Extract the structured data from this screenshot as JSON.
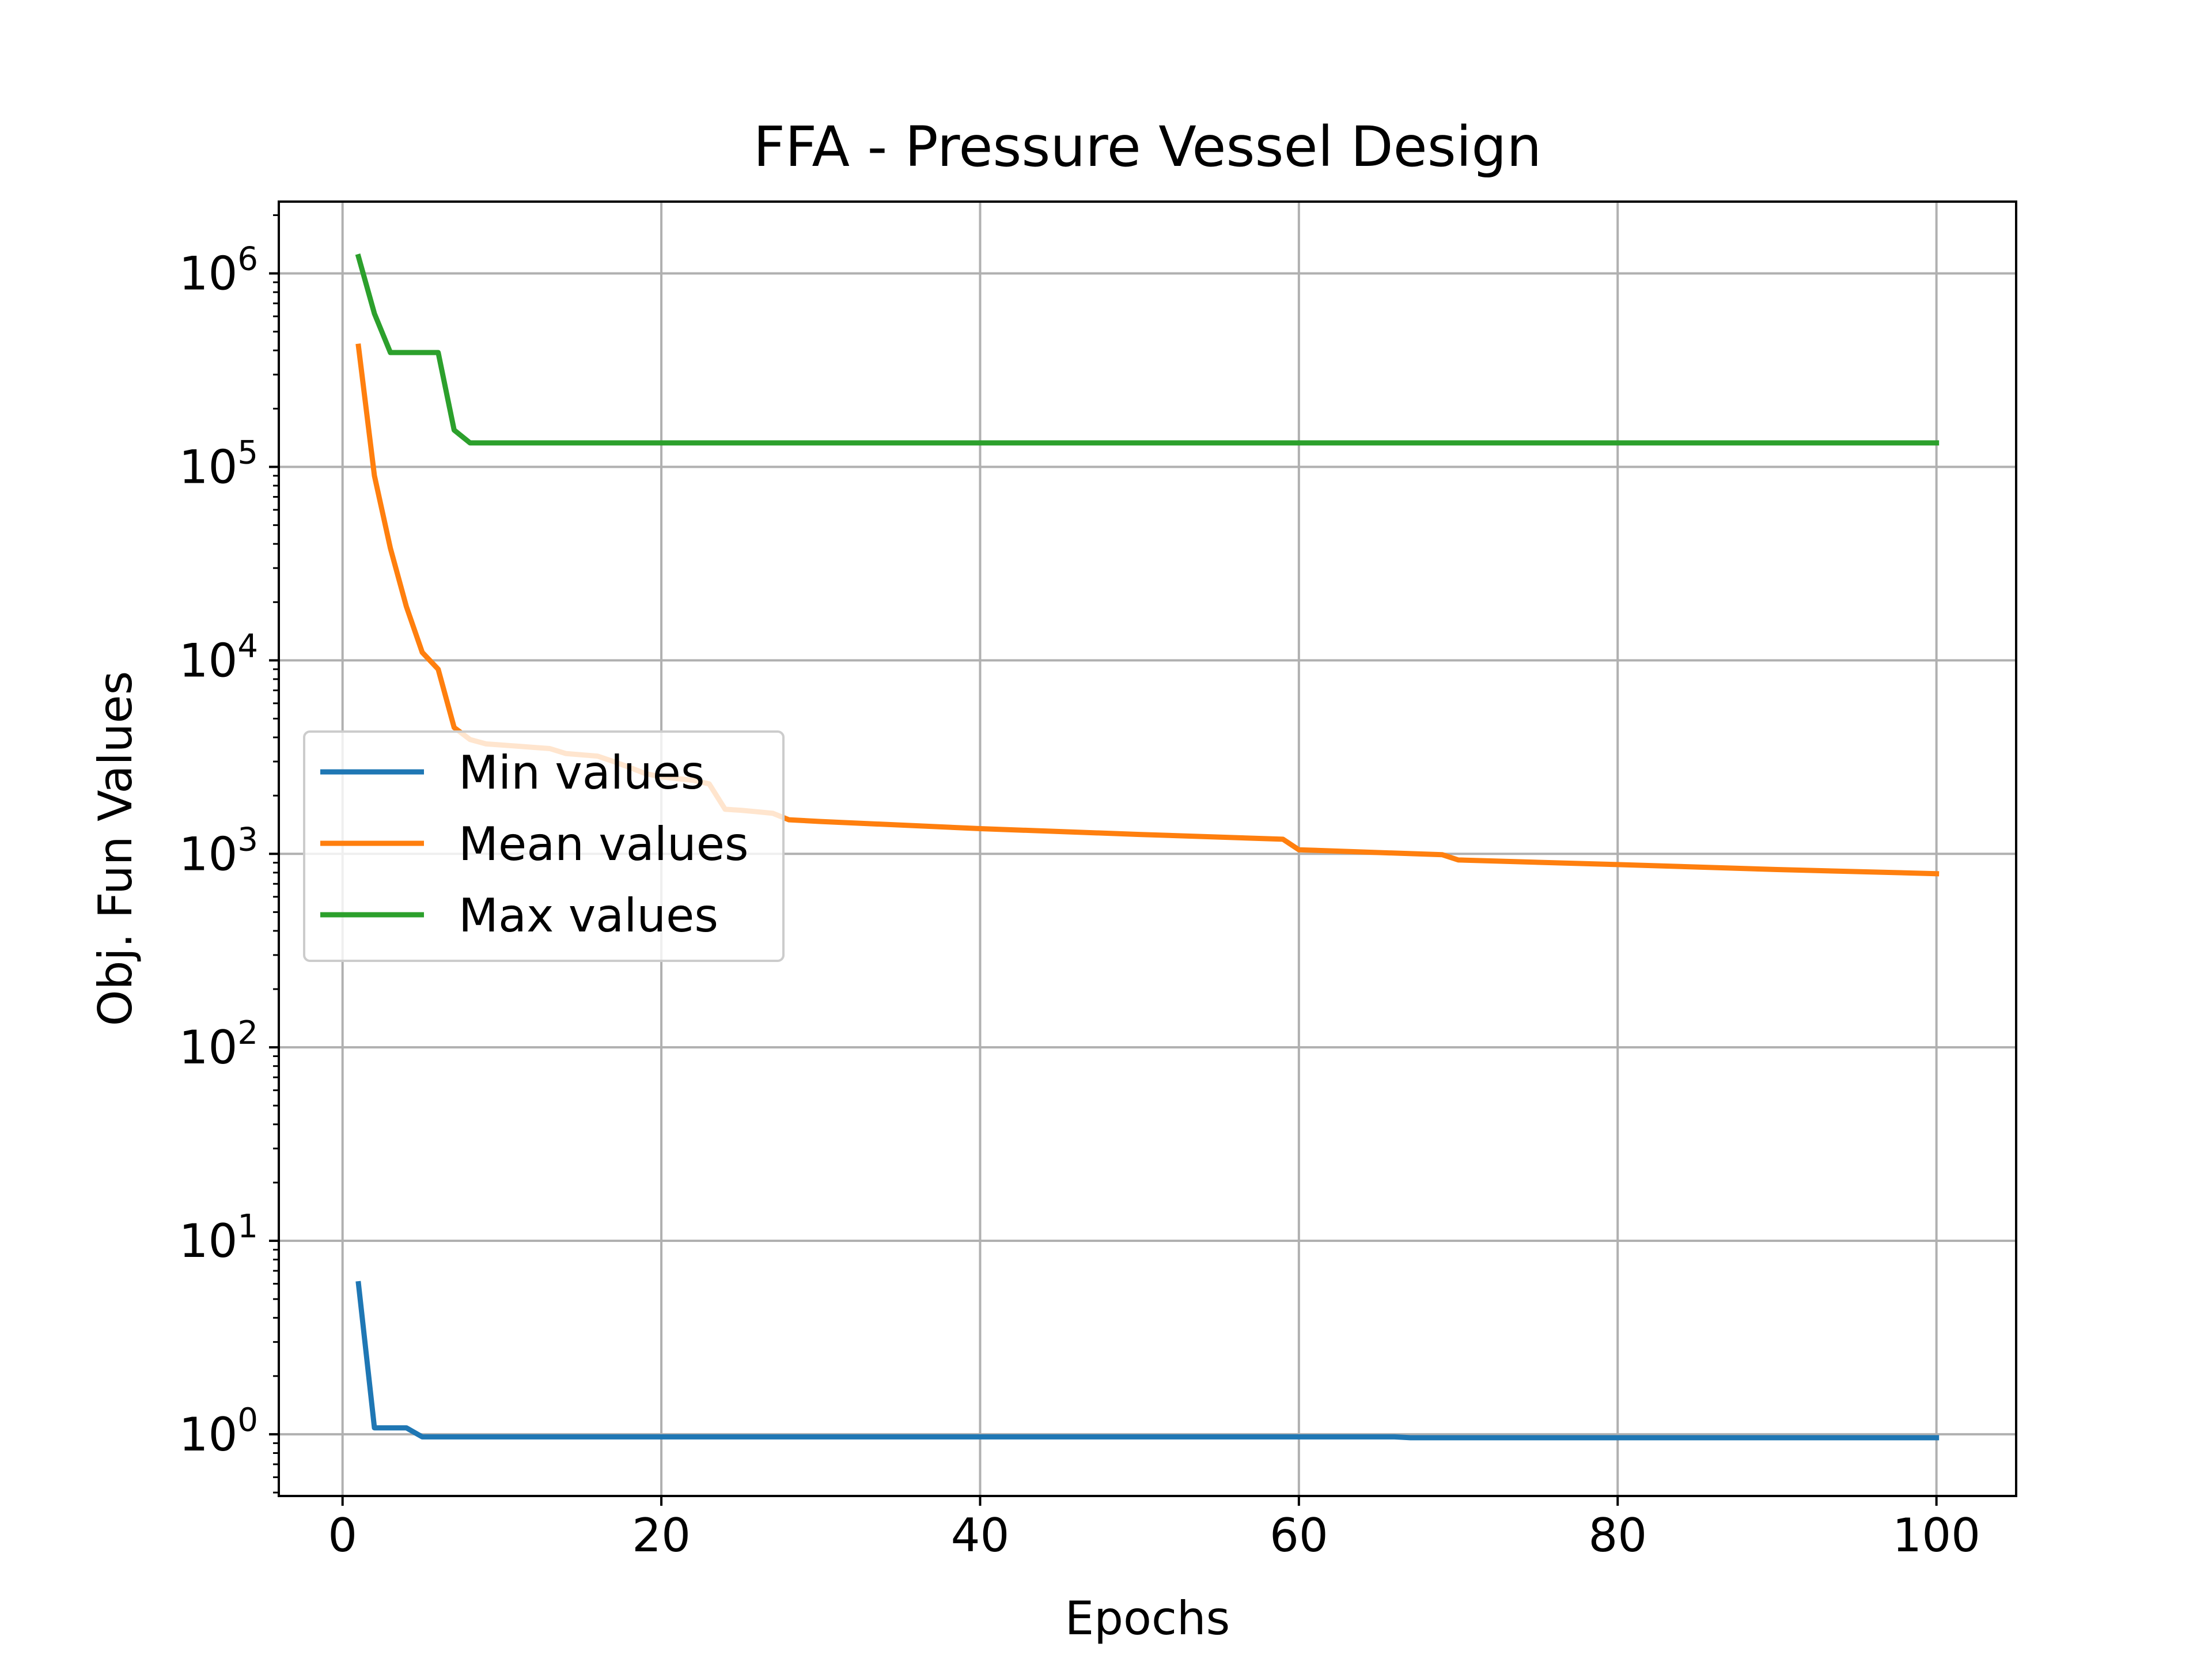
{
  "chart_data": {
    "type": "line",
    "title": "FFA - Pressure Vessel Design",
    "xlabel": "Epochs",
    "ylabel": "Obj. Fun Values",
    "xlim": [
      -4,
      105
    ],
    "ylim": [
      0.48,
      2350000
    ],
    "yscale": "log",
    "grid": true,
    "legend_position": "center-left",
    "x_ticks": [
      0,
      20,
      40,
      60,
      80,
      100
    ],
    "x_tick_labels": [
      "0",
      "20",
      "40",
      "60",
      "80",
      "100"
    ],
    "y_ticks": [
      1,
      10,
      100,
      1000,
      10000,
      100000,
      1000000
    ],
    "y_tick_labels": [
      {
        "base": "10",
        "exp": "0"
      },
      {
        "base": "10",
        "exp": "1"
      },
      {
        "base": "10",
        "exp": "2"
      },
      {
        "base": "10",
        "exp": "3"
      },
      {
        "base": "10",
        "exp": "4"
      },
      {
        "base": "10",
        "exp": "5"
      },
      {
        "base": "10",
        "exp": "6"
      }
    ],
    "series": [
      {
        "name": "Min values",
        "color": "#1f77b4",
        "points": [
          [
            1,
            6
          ],
          [
            2,
            1.08
          ],
          [
            3,
            1.08
          ],
          [
            4,
            1.08
          ],
          [
            5,
            0.97
          ],
          [
            66,
            0.97
          ],
          [
            67,
            0.96
          ],
          [
            100,
            0.96
          ]
        ]
      },
      {
        "name": "Mean values",
        "color": "#ff7f0e",
        "points": [
          [
            1,
            420000
          ],
          [
            2,
            90000
          ],
          [
            3,
            38000
          ],
          [
            4,
            19000
          ],
          [
            5,
            11000
          ],
          [
            6,
            9000
          ],
          [
            7,
            4500
          ],
          [
            8,
            3900
          ],
          [
            9,
            3700
          ],
          [
            10,
            3650
          ],
          [
            11,
            3600
          ],
          [
            12,
            3550
          ],
          [
            13,
            3500
          ],
          [
            14,
            3300
          ],
          [
            15,
            3250
          ],
          [
            16,
            3200
          ],
          [
            17,
            3000
          ],
          [
            18,
            2800
          ],
          [
            19,
            2600
          ],
          [
            20,
            2500
          ],
          [
            21,
            2450
          ],
          [
            22,
            2400
          ],
          [
            23,
            2300
          ],
          [
            24,
            1700
          ],
          [
            25,
            1680
          ],
          [
            26,
            1650
          ],
          [
            27,
            1620
          ],
          [
            28,
            1500
          ],
          [
            30,
            1470
          ],
          [
            40,
            1350
          ],
          [
            50,
            1260
          ],
          [
            59,
            1190
          ],
          [
            60,
            1050
          ],
          [
            69,
            990
          ],
          [
            70,
            930
          ],
          [
            80,
            880
          ],
          [
            90,
            830
          ],
          [
            100,
            790
          ]
        ]
      },
      {
        "name": "Max values",
        "color": "#2ca02c",
        "points": [
          [
            1,
            1220000
          ],
          [
            2,
            620000
          ],
          [
            3,
            390000
          ],
          [
            4,
            390000
          ],
          [
            5,
            390000
          ],
          [
            6,
            390000
          ],
          [
            7,
            155000
          ],
          [
            8,
            133000
          ],
          [
            100,
            133000
          ]
        ]
      }
    ]
  }
}
